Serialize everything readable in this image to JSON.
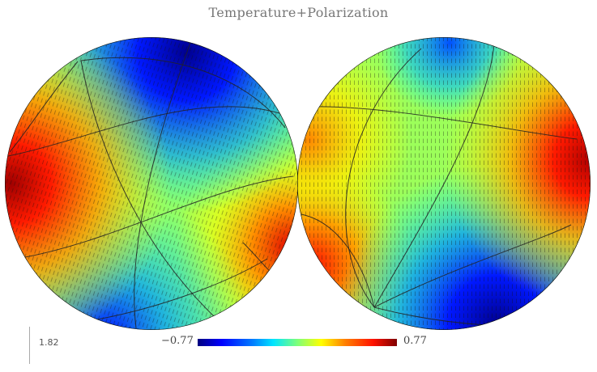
{
  "title": "Temperature+Polarization",
  "colorbar": {
    "min_label": "−0.77",
    "max_label": "0.77",
    "colormap": [
      "#00007f",
      "#0000ff",
      "#0080ff",
      "#00e5ff",
      "#7dff7a",
      "#ffff00",
      "#ff8000",
      "#ff1200",
      "#7f0000"
    ]
  },
  "scale": {
    "label": "1.82"
  }
}
